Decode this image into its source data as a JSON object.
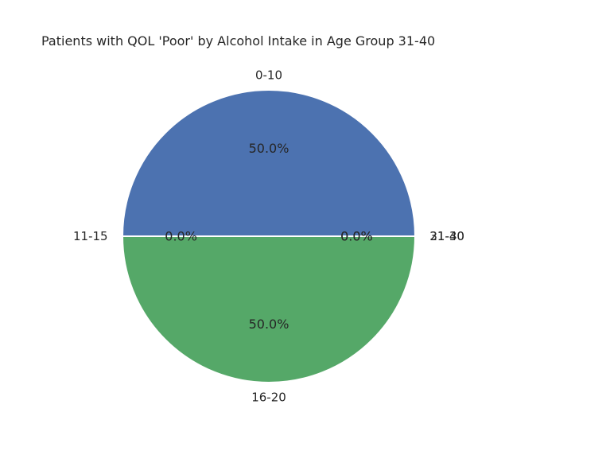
{
  "chart_data": {
    "type": "pie",
    "title": "Patients with QOL 'Poor' by Alcohol Intake in Age Group 31-40",
    "categories": [
      "0-10",
      "11-15",
      "16-20",
      "21-30",
      "31-40"
    ],
    "values": [
      50,
      0,
      50,
      0,
      0
    ],
    "percent_labels": [
      "50.0%",
      "0.0%",
      "50.0%",
      "0.0%",
      "0.0%"
    ],
    "colors": [
      "#4c72b0",
      "#dd8452",
      "#55a868",
      "#c44e52",
      "#8172b3"
    ],
    "start_angle_deg": 0,
    "direction": "counterclockwise",
    "legend": "none"
  }
}
